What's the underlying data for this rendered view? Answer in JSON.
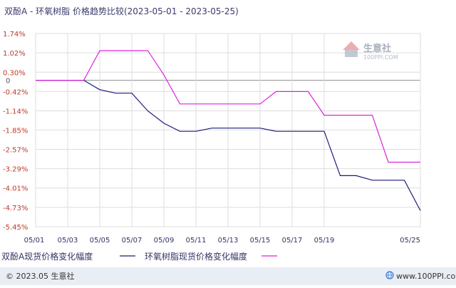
{
  "chart_data": {
    "type": "line",
    "title": "双酚A - 环氧树脂  价格趋势比较(2023-05-01 - 2023-05-25)",
    "x_tick_labels": [
      "05/01",
      "05/03",
      "05/05",
      "05/07",
      "05/09",
      "05/11",
      "05/13",
      "05/15",
      "05/17",
      "05/19",
      "05/25"
    ],
    "y_tick_labels": [
      "1.74%",
      "1.02%",
      "0.30%",
      "0",
      "-0.42%",
      "-1.14%",
      "-1.85%",
      "-2.57%",
      "-3.29%",
      "-4.01%",
      "-4.73%",
      "-5.45%"
    ],
    "ylim": [
      -5.45,
      1.74
    ],
    "x_days": [
      1,
      25
    ],
    "grid": true,
    "series": [
      {
        "name": "双酚A现货价格变化幅度",
        "color": "#1a1a7a",
        "points": [
          [
            1,
            0.0
          ],
          [
            2,
            0.0
          ],
          [
            3,
            0.0
          ],
          [
            4,
            0.0
          ],
          [
            5,
            -0.35
          ],
          [
            6,
            -0.48
          ],
          [
            7,
            -0.48
          ],
          [
            8,
            -1.14
          ],
          [
            9,
            -1.6
          ],
          [
            10,
            -1.9
          ],
          [
            11,
            -1.9
          ],
          [
            12,
            -1.78
          ],
          [
            13,
            -1.78
          ],
          [
            14,
            -1.78
          ],
          [
            15,
            -1.78
          ],
          [
            16,
            -1.9
          ],
          [
            17,
            -1.9
          ],
          [
            18,
            -1.9
          ],
          [
            19,
            -1.9
          ],
          [
            20,
            -3.55
          ],
          [
            21,
            -3.55
          ],
          [
            22,
            -3.72
          ],
          [
            23,
            -3.72
          ],
          [
            24,
            -3.72
          ],
          [
            25,
            -4.85
          ]
        ]
      },
      {
        "name": "环氧树脂现货价格变化幅度",
        "color": "#dd22dd",
        "points": [
          [
            1,
            0.0
          ],
          [
            2,
            0.0
          ],
          [
            3,
            0.0
          ],
          [
            4,
            0.0
          ],
          [
            5,
            1.1
          ],
          [
            6,
            1.1
          ],
          [
            7,
            1.1
          ],
          [
            8,
            1.1
          ],
          [
            9,
            0.2
          ],
          [
            10,
            -0.88
          ],
          [
            11,
            -0.88
          ],
          [
            12,
            -0.88
          ],
          [
            13,
            -0.88
          ],
          [
            14,
            -0.88
          ],
          [
            15,
            -0.88
          ],
          [
            16,
            -0.42
          ],
          [
            17,
            -0.42
          ],
          [
            18,
            -0.42
          ],
          [
            19,
            -1.3
          ],
          [
            20,
            -1.3
          ],
          [
            21,
            -1.3
          ],
          [
            22,
            -1.3
          ],
          [
            23,
            -3.05
          ],
          [
            24,
            -3.05
          ],
          [
            25,
            -3.05
          ]
        ]
      }
    ]
  },
  "watermark": {
    "brand": "生意社",
    "url": "100PPI.COM"
  },
  "footer": {
    "copyright": "© 2023.05 生意社",
    "url": "www.100PPI.com"
  },
  "colors": {
    "grid": "#dddddd",
    "axis": "#999999",
    "footer_bg": "#e9eef5"
  }
}
